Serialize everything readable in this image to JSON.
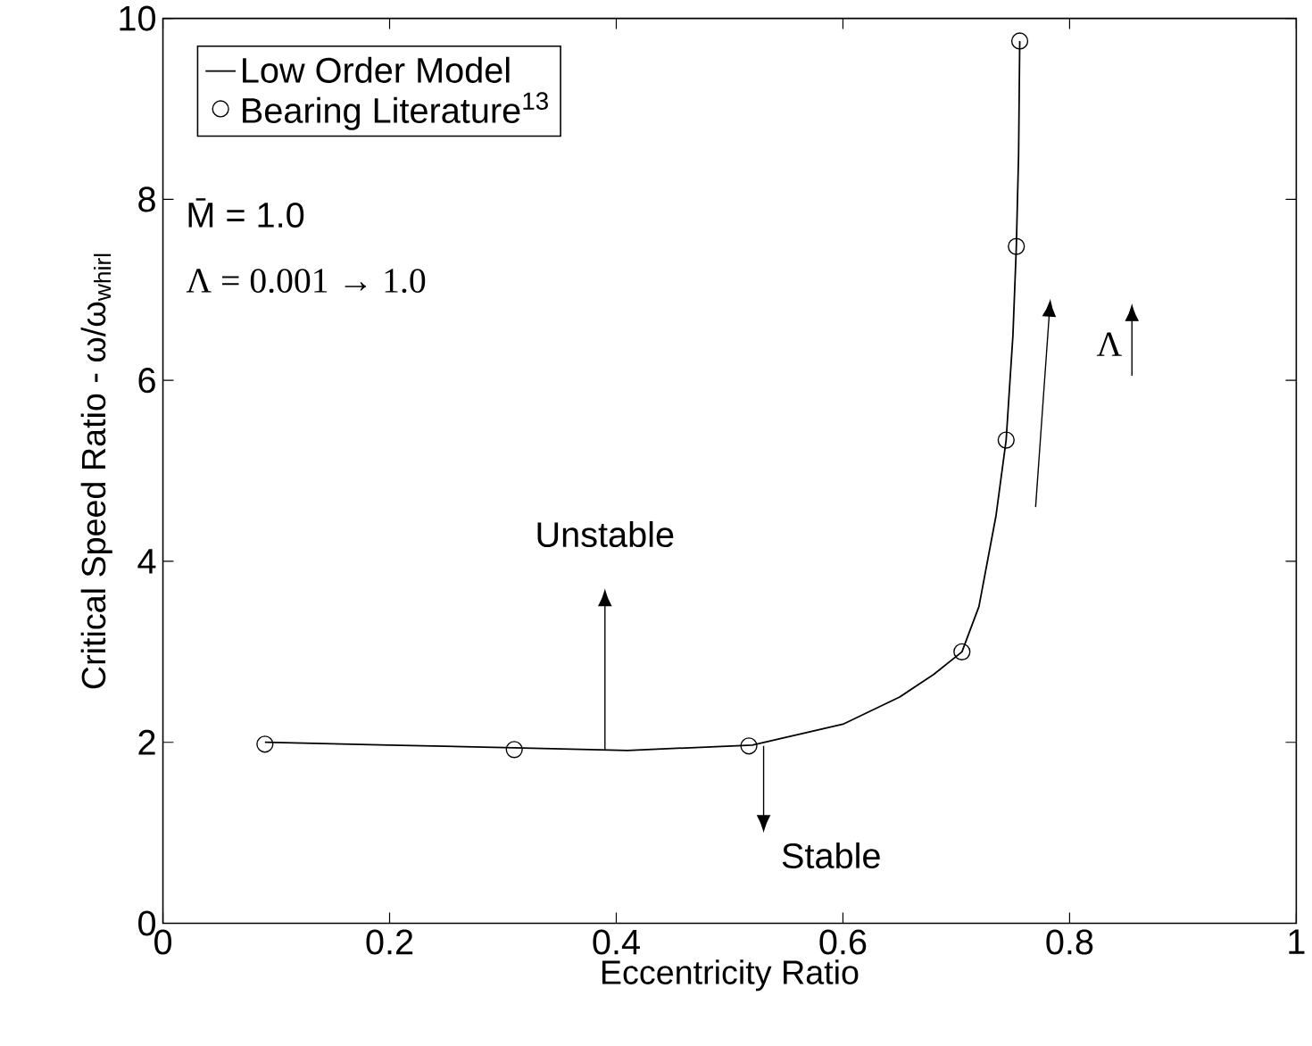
{
  "chart_data": {
    "type": "line",
    "xlabel": "Eccentricity Ratio",
    "ylabel": "Critical Speed Ratio - ω/ω$_{whirl}$",
    "xlim": [
      0,
      1
    ],
    "ylim": [
      0,
      10
    ],
    "xticks": [
      0,
      0.2,
      0.4,
      0.6,
      0.8,
      1
    ],
    "yticks": [
      0,
      2,
      4,
      6,
      8,
      10
    ],
    "grid": false,
    "legend": "top left",
    "series": [
      {
        "name": "Low Order Model",
        "color": "#000000",
        "marker": "none",
        "x": [
          0.09,
          0.2,
          0.31,
          0.41,
          0.52,
          0.6,
          0.65,
          0.68,
          0.705,
          0.72,
          0.735,
          0.744,
          0.75,
          0.753,
          0.755,
          0.756
        ],
        "values": [
          2.0,
          1.97,
          1.94,
          1.91,
          1.97,
          2.2,
          2.5,
          2.75,
          3.0,
          3.5,
          4.5,
          5.34,
          6.5,
          7.48,
          8.5,
          9.75
        ]
      },
      {
        "name": "Bearing Literature$^{13}$",
        "type": "scatter",
        "color": "#000000",
        "marker": "circle",
        "x": [
          0.09,
          0.31,
          0.517,
          0.705,
          0.744,
          0.753,
          0.756
        ],
        "values": [
          1.98,
          1.92,
          1.96,
          3.0,
          5.34,
          7.48,
          9.75
        ]
      }
    ],
    "annotations": [
      "M̄ = 1.0",
      "Λ = 0.001 → 1.0",
      "Unstable",
      {
        "text": "Stable",
        "x": 0.53,
        "y": 1.96
      },
      "Λ"
    ]
  }
}
